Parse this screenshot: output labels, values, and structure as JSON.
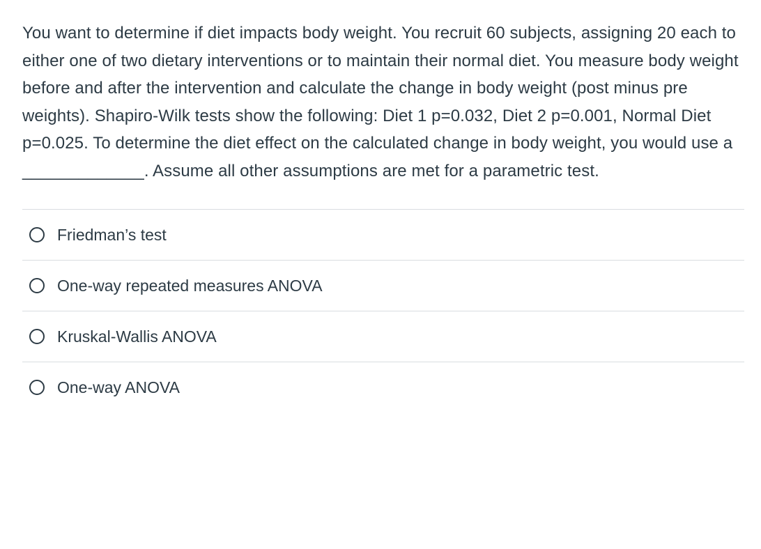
{
  "question": {
    "text": "You want to determine if diet impacts body weight. You recruit 60 subjects, assigning 20 each to either one of two dietary interventions or to maintain their normal diet. You measure body weight before and after the intervention and calculate the change in body weight (post minus pre weights). Shapiro-Wilk tests show the following: Diet 1 p=0.032, Diet 2 p=0.001, Normal Diet p=0.025. To determine the diet effect on the calculated change in body weight, you would use a _____________. Assume all other assumptions are met for a parametric test."
  },
  "options": [
    {
      "label": "Friedman’s test"
    },
    {
      "label": "One-way repeated measures ANOVA"
    },
    {
      "label": "Kruskal-Wallis ANOVA"
    },
    {
      "label": "One-way ANOVA"
    }
  ],
  "styles": {
    "text_color": "#2d3b45",
    "background_color": "#ffffff",
    "divider_color": "#d9dde1",
    "question_fontsize": 24,
    "option_fontsize": 23,
    "radio_border_color": "#2d3b45",
    "radio_size": 22
  }
}
